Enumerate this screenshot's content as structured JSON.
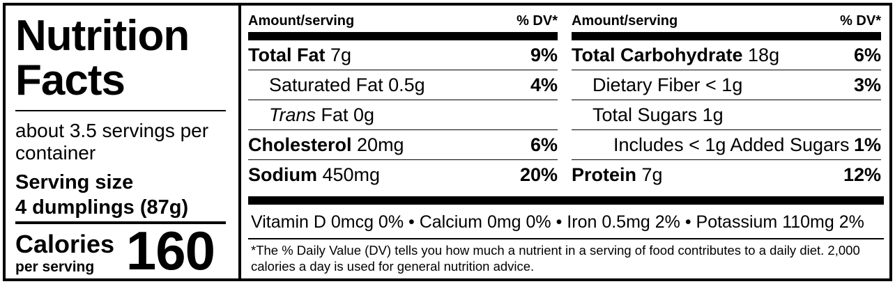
{
  "title": "Nutrition Facts",
  "servings_per_container": "about 3.5 servings per container",
  "serving_size_label": "Serving size",
  "serving_size_value": "4 dumplings (87g)",
  "calories_label": "Calories",
  "calories_sublabel": "per serving",
  "calories_value": "160",
  "columns": [
    {
      "header_left": "Amount/serving",
      "header_right": "% DV*",
      "rows": [
        {
          "name": "Total Fat",
          "amount": " 7g",
          "dv": "9%"
        },
        {
          "name": "Saturated Fat 0.5g",
          "amount": "",
          "dv": "4%"
        },
        {
          "name": "Trans",
          "amount": " Fat 0g",
          "dv": ""
        },
        {
          "name": "Cholesterol",
          "amount": " 20mg",
          "dv": "6%"
        },
        {
          "name": "Sodium",
          "amount": " 450mg",
          "dv": "20%"
        }
      ]
    },
    {
      "header_left": "Amount/serving",
      "header_right": "% DV*",
      "rows": [
        {
          "name": "Total Carbohydrate",
          "amount": " 18g",
          "dv": "6%"
        },
        {
          "name": "Dietary Fiber < 1g",
          "amount": "",
          "dv": "3%"
        },
        {
          "name": "Total Sugars 1g",
          "amount": "",
          "dv": ""
        },
        {
          "name": "Includes < 1g Added Sugars",
          "amount": "",
          "dv": "1%"
        },
        {
          "name": "Protein",
          "amount": " 7g",
          "dv": "12%"
        }
      ]
    }
  ],
  "vitamins_line": "Vitamin D 0mcg 0% • Calcium 0mg 0% • Iron 0.5mg 2% • Potassium 110mg 2%",
  "footnote": "*The % Daily Value (DV) tells you how much a nutrient in a serving of food contributes to a daily diet. 2,000 calories a day is used for general nutrition advice."
}
